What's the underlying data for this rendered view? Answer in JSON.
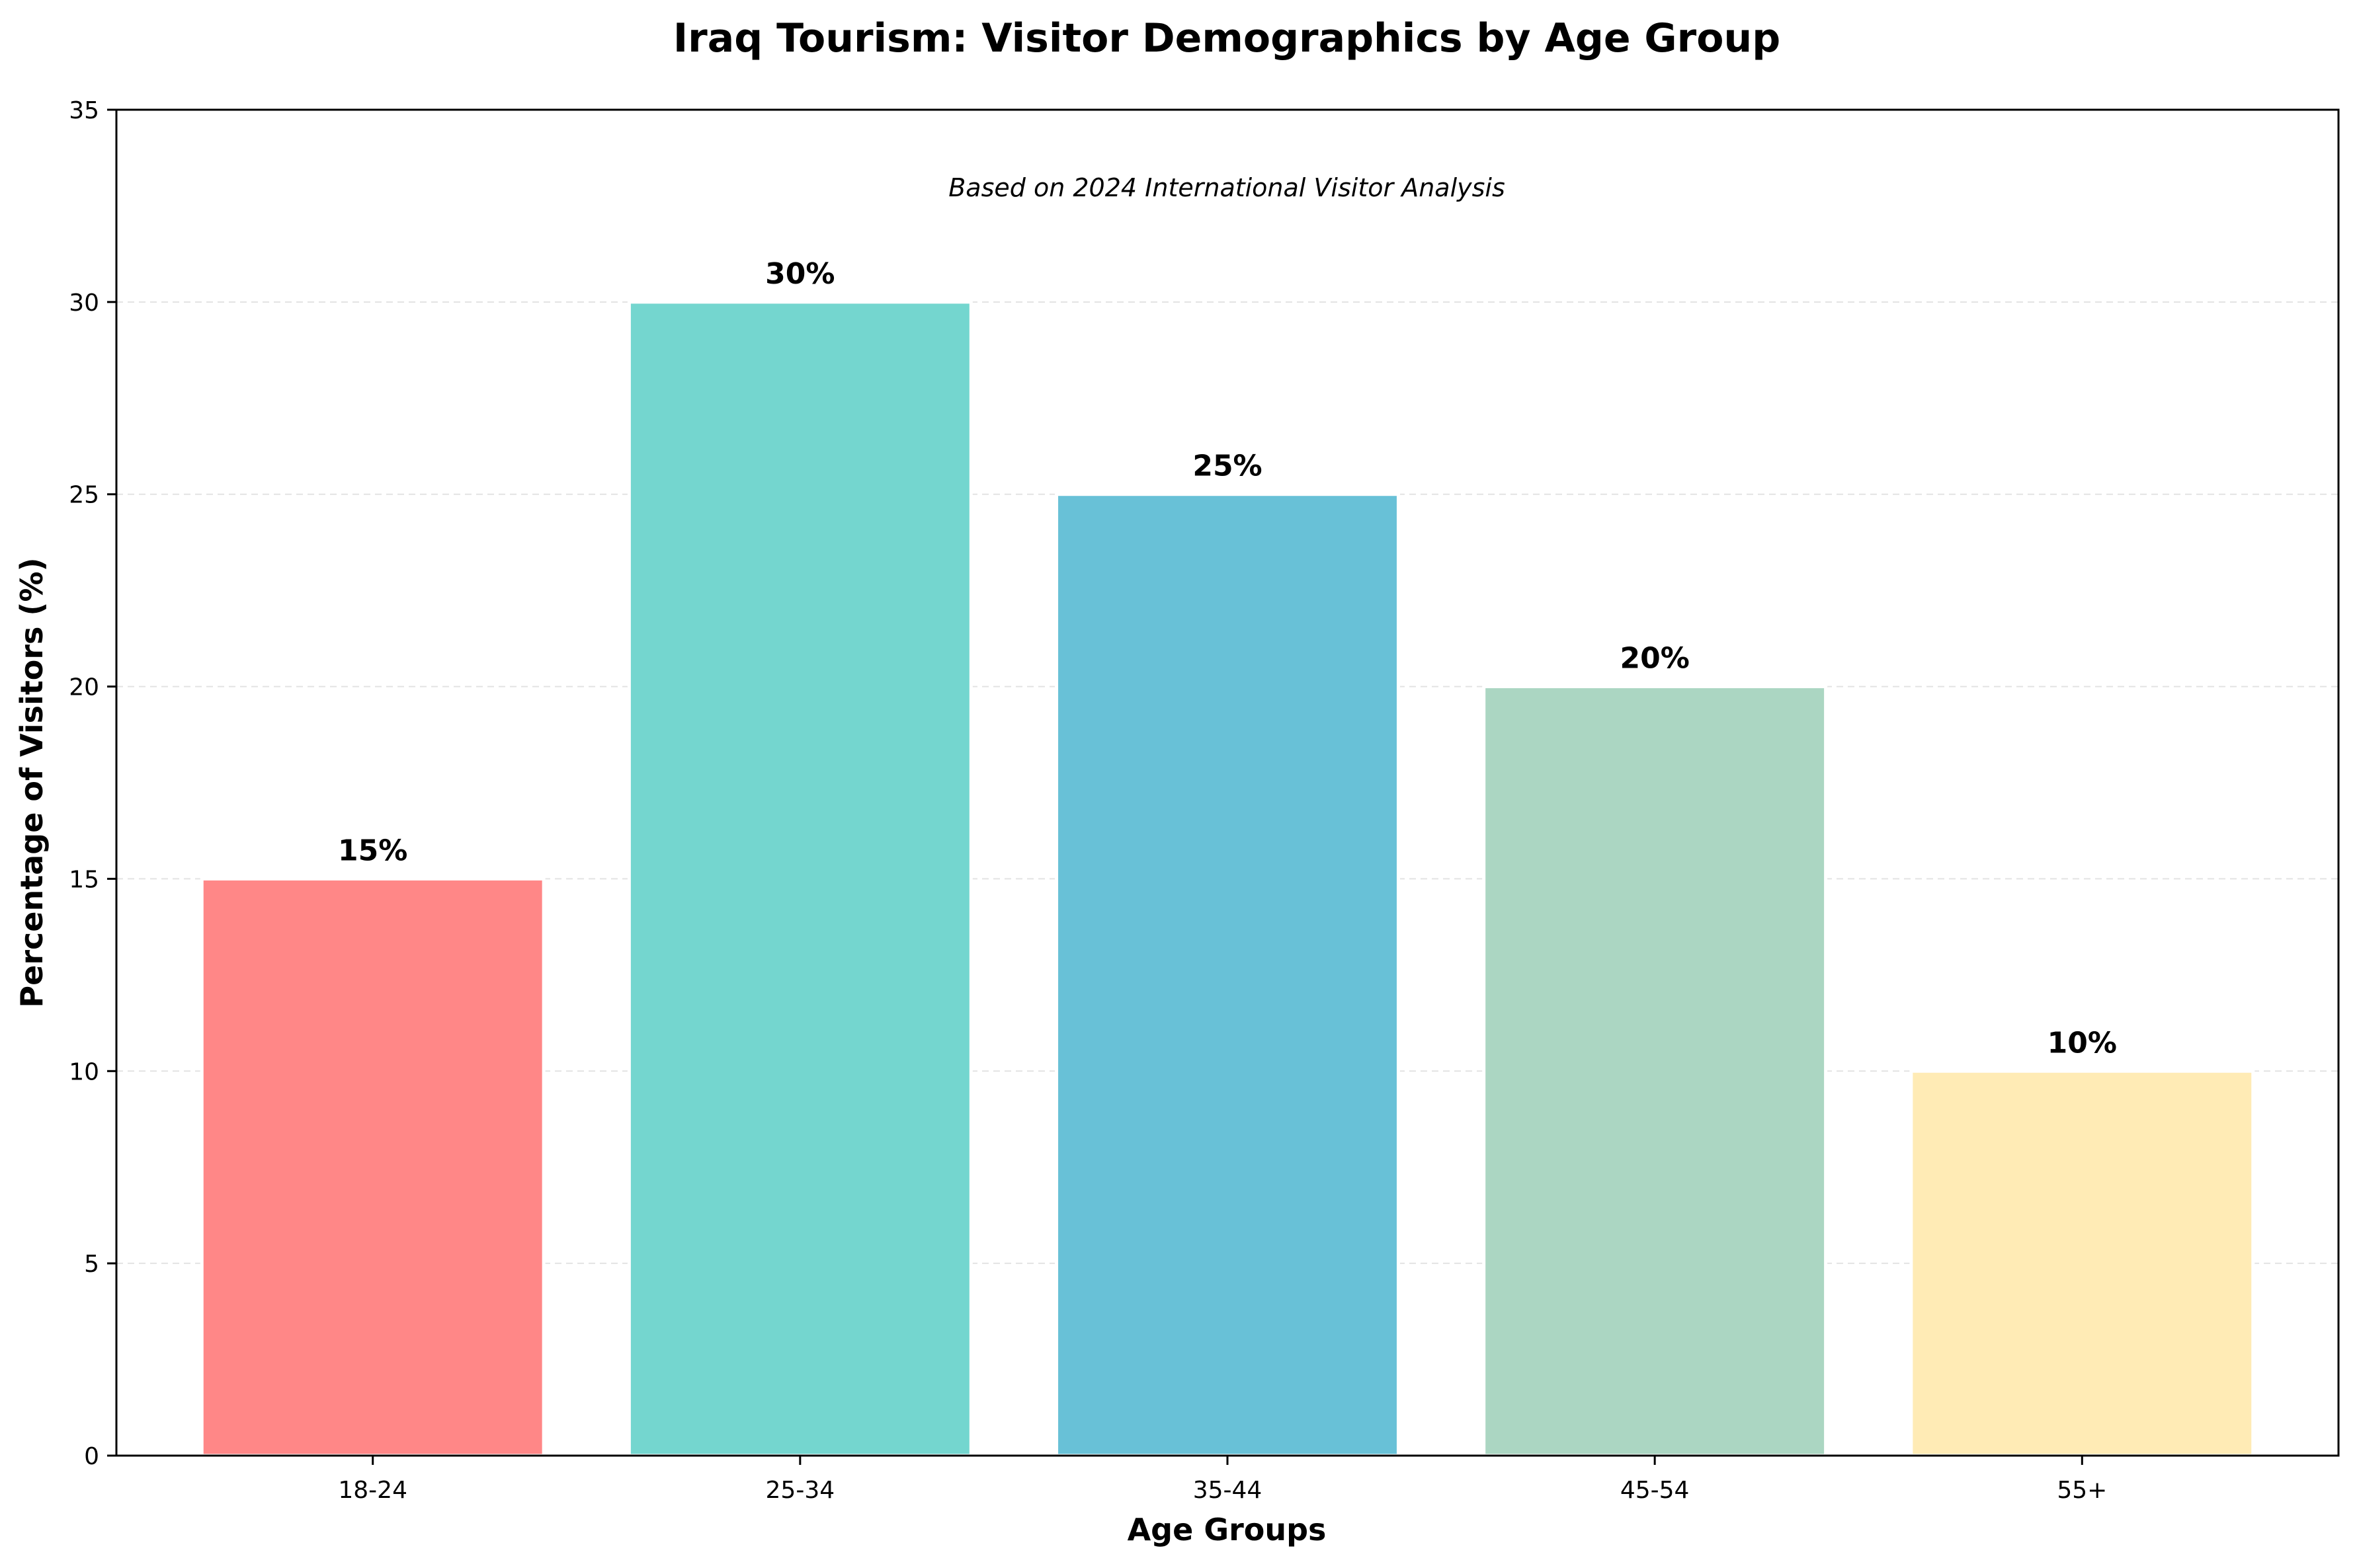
{
  "chart_data": {
    "type": "bar",
    "title": "Iraq Tourism: Visitor Demographics by Age Group",
    "annotation": "Based on 2024 International Visitor Analysis",
    "xlabel": "Age Groups",
    "ylabel": "Percentage of Visitors (%)",
    "categories": [
      "18-24",
      "25-34",
      "35-44",
      "45-54",
      "55+"
    ],
    "values": [
      15,
      30,
      25,
      20,
      10
    ],
    "value_labels": [
      "15%",
      "30%",
      "25%",
      "20%",
      "10%"
    ],
    "colors": [
      "#FF8787",
      "#74D6CF",
      "#68C1D7",
      "#ABD6C2",
      "#FFEBB5"
    ],
    "ylim": [
      0,
      35
    ],
    "yticks": [
      0,
      5,
      10,
      15,
      20,
      25,
      30,
      35
    ],
    "grid": "horizontal dashed",
    "legend": "none"
  }
}
